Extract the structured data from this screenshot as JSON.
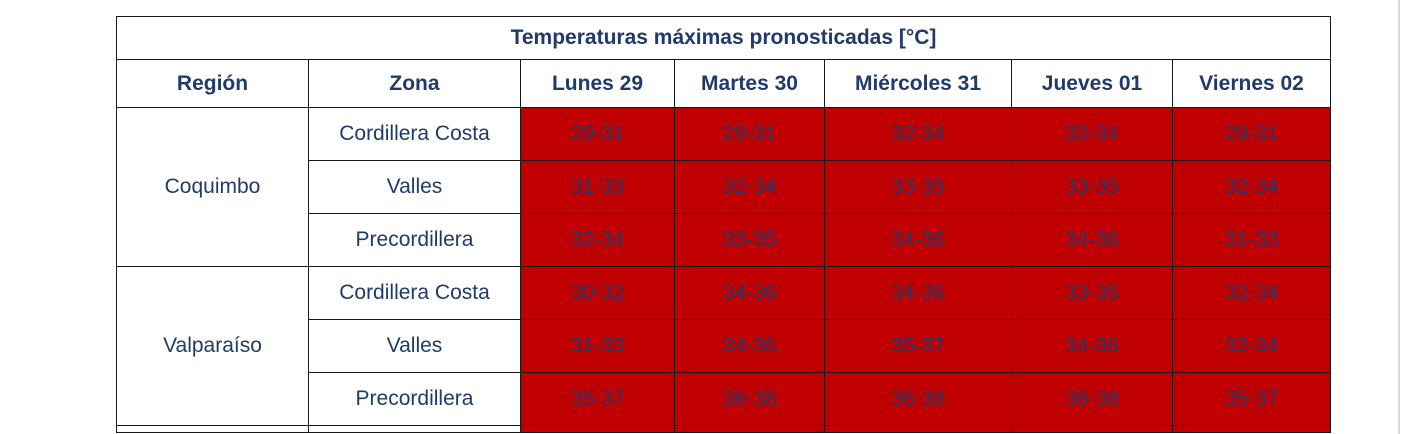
{
  "table": {
    "title": "Temperaturas máximas pronosticadas [°C]",
    "headers": [
      "Región",
      "Zona",
      "Lunes 29",
      "Martes 30",
      "Miércoles 31",
      "Jueves 01",
      "Viernes 02"
    ],
    "regions": [
      {
        "name": "Coquimbo",
        "rows": [
          {
            "zone": "Cordillera Costa",
            "values": [
              "29-31",
              "29-31",
              "32-34",
              "32-34",
              "29-31"
            ]
          },
          {
            "zone": "Valles",
            "values": [
              "31-33",
              "32-34",
              "33-35",
              "33-35",
              "32-34"
            ]
          },
          {
            "zone": "Precordillera",
            "values": [
              "32-34",
              "33-35",
              "34-36",
              "34-36",
              "31-33"
            ]
          }
        ]
      },
      {
        "name": "Valparaíso",
        "rows": [
          {
            "zone": "Cordillera Costa",
            "values": [
              "30-32",
              "34-36",
              "34-36",
              "33-35",
              "32-34"
            ]
          },
          {
            "zone": "Valles",
            "values": [
              "31-33",
              "34-36",
              "35-37",
              "34-36",
              "32-34"
            ]
          },
          {
            "zone": "Precordillera",
            "values": [
              "35-37",
              "36-38",
              "36-38",
              "36-38",
              "35-37"
            ]
          }
        ]
      }
    ]
  },
  "colors": {
    "header_text": "#1f3a6b",
    "cell_fill": "#c00000",
    "cell_text": "#ffffff"
  }
}
